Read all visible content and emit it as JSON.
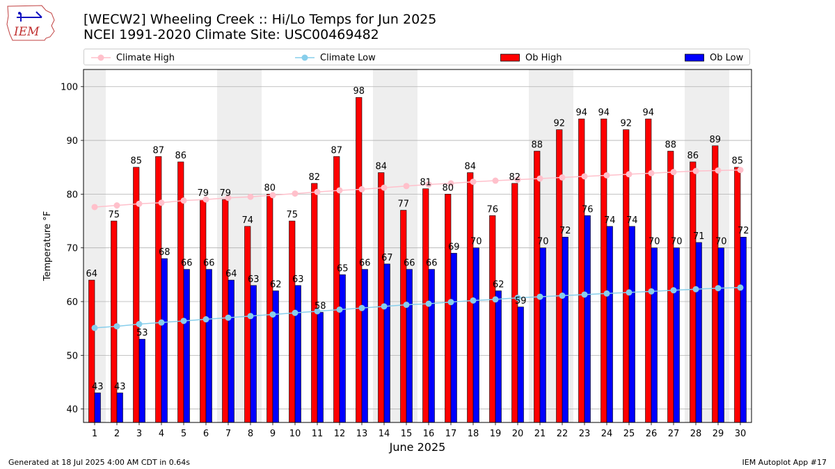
{
  "header": {
    "title_line1": "[WECW2] Wheeling Creek :: Hi/Lo Temps for Jun 2025",
    "title_line2": "NCEI 1991-2020 Climate Site: USC00469482",
    "logo_text": "IEM"
  },
  "legend": {
    "climate_high": "Climate High",
    "climate_low": "Climate Low",
    "ob_high": "Ob High",
    "ob_low": "Ob Low"
  },
  "footer": {
    "generated": "Generated at 18 Jul 2025 4:00 AM CDT in 0.64s",
    "app": "IEM Autoplot App #17"
  },
  "colors": {
    "ob_high": "#ff0000",
    "ob_low": "#0000ff",
    "climate_high": "#ffc0cb",
    "climate_low": "#87ceeb",
    "weekend_band": "#eeeeee",
    "grid": "#b0b0b0"
  },
  "chart_data": {
    "type": "bar",
    "xlabel": "June 2025",
    "ylabel": "Temperature °F",
    "ylim": [
      37.5,
      103.2
    ],
    "yticks": [
      40,
      50,
      60,
      70,
      80,
      90,
      100
    ],
    "grid": "horizontal",
    "legend_placement": "top",
    "categories": [
      1,
      2,
      3,
      4,
      5,
      6,
      7,
      8,
      9,
      10,
      11,
      12,
      13,
      14,
      15,
      16,
      17,
      18,
      19,
      20,
      21,
      22,
      23,
      24,
      25,
      26,
      27,
      28,
      29,
      30
    ],
    "weekend_days": [
      1,
      7,
      8,
      14,
      15,
      21,
      22,
      28,
      29
    ],
    "series": [
      {
        "name": "Ob High",
        "kind": "bar",
        "values": [
          64,
          75,
          85,
          87,
          86,
          79,
          79,
          74,
          80,
          75,
          82,
          87,
          98,
          84,
          77,
          81,
          80,
          84,
          76,
          82,
          88,
          92,
          94,
          94,
          92,
          94,
          88,
          86,
          89,
          85
        ]
      },
      {
        "name": "Ob Low",
        "kind": "bar",
        "values": [
          43,
          43,
          53,
          68,
          66,
          66,
          64,
          63,
          62,
          63,
          58,
          65,
          66,
          67,
          66,
          66,
          69,
          70,
          62,
          59,
          70,
          72,
          76,
          74,
          74,
          70,
          70,
          71,
          70,
          72
        ]
      },
      {
        "name": "Climate High",
        "kind": "line",
        "values": [
          77.6,
          77.9,
          78.2,
          78.4,
          78.8,
          79.0,
          79.3,
          79.5,
          79.8,
          80.1,
          80.4,
          80.7,
          80.9,
          81.2,
          81.5,
          81.8,
          82.0,
          82.3,
          82.5,
          82.7,
          82.9,
          83.1,
          83.3,
          83.5,
          83.7,
          83.9,
          84.1,
          84.3,
          84.4,
          84.5
        ]
      },
      {
        "name": "Climate Low",
        "kind": "line",
        "values": [
          55.1,
          55.4,
          55.8,
          56.1,
          56.4,
          56.7,
          57.0,
          57.3,
          57.6,
          57.9,
          58.2,
          58.5,
          58.8,
          59.1,
          59.4,
          59.6,
          59.9,
          60.2,
          60.4,
          60.7,
          60.9,
          61.1,
          61.3,
          61.5,
          61.7,
          61.9,
          62.1,
          62.3,
          62.5,
          62.6
        ]
      }
    ]
  }
}
